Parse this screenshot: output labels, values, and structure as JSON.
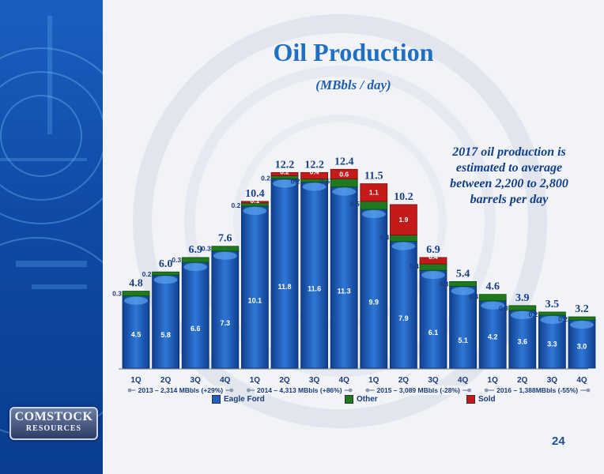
{
  "title": "Oil Production",
  "subtitle": "(MBbls / day)",
  "note": "2017 oil production is estimated to average between 2,200 to 2,800 barrels per day",
  "logo": {
    "line1": "COMSTOCK",
    "line2": "RESOURCES"
  },
  "page_number": "24",
  "colors": {
    "eagle_ford": "#1f5fbf",
    "other": "#1f7a1f",
    "sold": "#c41a1a",
    "title": "#1f6fc2"
  },
  "legend": [
    {
      "label": "Eagle Ford",
      "color": "#1f5fbf"
    },
    {
      "label": "Other",
      "color": "#1f7a1f"
    },
    {
      "label": "Sold",
      "color": "#c41a1a"
    }
  ],
  "chart_data": {
    "type": "bar",
    "stacked": true,
    "categories": [
      "1Q",
      "2Q",
      "3Q",
      "4Q",
      "1Q",
      "2Q",
      "3Q",
      "4Q",
      "1Q",
      "2Q",
      "3Q",
      "4Q",
      "1Q",
      "2Q",
      "3Q",
      "4Q"
    ],
    "series": [
      {
        "name": "Eagle Ford",
        "values": [
          4.5,
          5.8,
          6.6,
          7.3,
          10.1,
          11.8,
          11.6,
          11.3,
          9.9,
          7.9,
          6.1,
          5.1,
          4.2,
          3.6,
          3.3,
          3.0
        ]
      },
      {
        "name": "Other",
        "values": [
          0.3,
          0.2,
          0.3,
          0.3,
          0.2,
          0.2,
          0.2,
          0.5,
          0.5,
          0.4,
          0.4,
          0.3,
          0.4,
          0.3,
          0.2,
          0.2
        ]
      },
      {
        "name": "Sold",
        "values": [
          0,
          0,
          0,
          0,
          0.1,
          0.2,
          0.4,
          0.6,
          1.1,
          1.9,
          0.4,
          0,
          0,
          0,
          0,
          0
        ]
      }
    ],
    "totals": [
      "4.8",
      "6.0",
      "6.9",
      "7.6",
      "10.4",
      "12.2",
      "12.2",
      "12.4",
      "11.5",
      "10.2",
      "6.9",
      "5.4",
      "4.6",
      "3.9",
      "3.5",
      "3.2"
    ],
    "eagle_labels": [
      "4.5",
      "5.8",
      "6.6",
      "7.3",
      "10.1",
      "11.8",
      "11.6",
      "11.3",
      "9.9",
      "7.9",
      "6.1",
      "5.1",
      "4.2",
      "3.6",
      "3.3",
      "3.0"
    ],
    "other_labels": [
      "0.3",
      "0.2",
      "0.3",
      "0.3",
      "0.2",
      "0.2",
      "0.2",
      "0.5",
      "0.5",
      "0.4",
      "0.4",
      "0.3",
      "0.4",
      "0.3",
      "0.2",
      "0.2"
    ],
    "sold_labels": [
      "",
      "",
      "",
      "",
      "0.1",
      "0.2",
      "0.4",
      "0.6",
      "1.1",
      "1.9",
      "0.4",
      "",
      "",
      "",
      "",
      ""
    ],
    "year_groups": [
      {
        "label": "2013 – 2,314 MBbls (+29%)",
        "start": 0,
        "end": 3
      },
      {
        "label": "2014 – 4,313 MBbls (+86%)",
        "start": 4,
        "end": 7
      },
      {
        "label": "2015 – 3,089 MBbls (-28%)",
        "start": 8,
        "end": 11
      },
      {
        "label": "2016 – 1,388MBbls (-55%)",
        "start": 12,
        "end": 15
      }
    ],
    "ylim": [
      0,
      13
    ],
    "grid": false,
    "legend_position": "bottom"
  }
}
